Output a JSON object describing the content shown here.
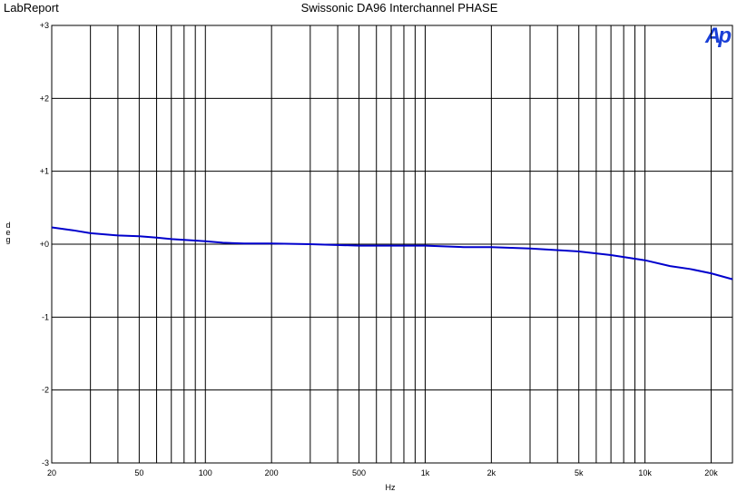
{
  "chart_data": {
    "type": "line",
    "title": "Swissonic DA96 Interchannel PHASE",
    "header": "LabReport",
    "logo": "Ap",
    "xlabel": "Hz",
    "ylabel": "deg",
    "xscale": "log",
    "grid": true,
    "xlim": [
      20,
      25000
    ],
    "ylim": [
      -3,
      3
    ],
    "xticks": [
      20,
      50,
      100,
      200,
      500,
      {
        "value": 1000,
        "label": "1k"
      },
      {
        "value": 2000,
        "label": "2k"
      },
      {
        "value": 5000,
        "label": "5k"
      },
      {
        "value": 10000,
        "label": "10k"
      },
      {
        "value": 20000,
        "label": "20k"
      }
    ],
    "xgrid": [
      30,
      40,
      60,
      70,
      80,
      90,
      300,
      400,
      600,
      700,
      800,
      900,
      3000,
      4000,
      6000,
      7000,
      8000,
      9000
    ],
    "yticks": [
      {
        "value": 3,
        "label": "+3"
      },
      {
        "value": 2,
        "label": "+2"
      },
      {
        "value": 1,
        "label": "+1"
      },
      {
        "value": 0,
        "label": "+0"
      },
      -1,
      -2,
      -3
    ],
    "x": [
      20,
      25,
      30,
      40,
      50,
      60,
      70,
      80,
      100,
      120,
      150,
      200,
      300,
      500,
      1000,
      1500,
      2000,
      3000,
      5000,
      7000,
      10000,
      13000,
      16000,
      20000,
      25000
    ],
    "series": [
      {
        "name": "Phase",
        "color": "#0000cc",
        "values": [
          0.23,
          0.19,
          0.15,
          0.12,
          0.11,
          0.09,
          0.07,
          0.06,
          0.04,
          0.02,
          0.01,
          0.01,
          0.0,
          -0.02,
          -0.02,
          -0.04,
          -0.04,
          -0.06,
          -0.1,
          -0.15,
          -0.22,
          -0.3,
          -0.34,
          -0.4,
          -0.48
        ]
      }
    ]
  }
}
